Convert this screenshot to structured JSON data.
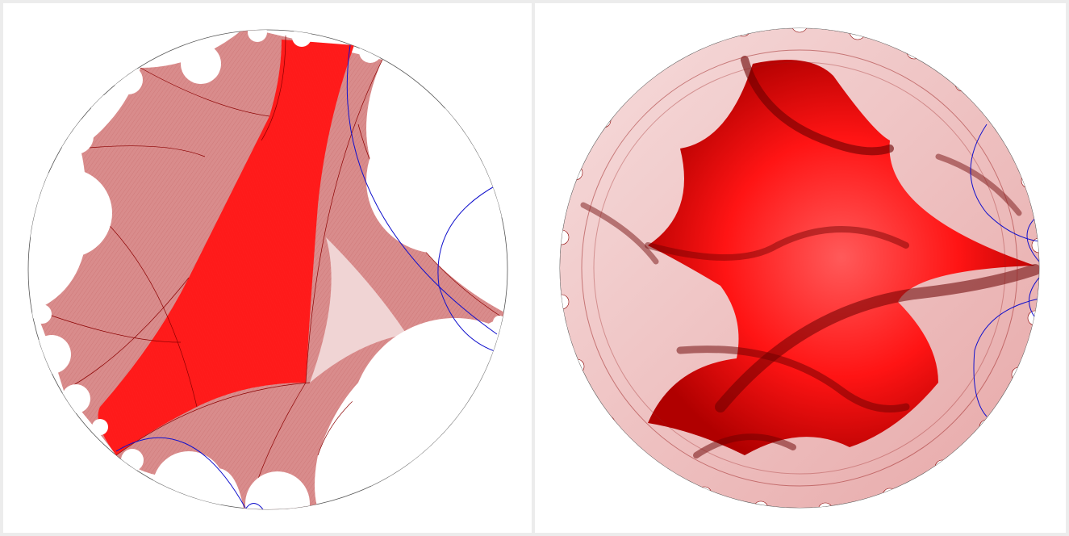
{
  "figure": {
    "panels": [
      {
        "id": "left",
        "description_name": "limit-set-strip-view"
      },
      {
        "id": "right",
        "description_name": "limit-set-fractal-view"
      }
    ]
  },
  "colors": {
    "background": "#ececec",
    "panel": "#ffffff",
    "disk_outline": "#555555",
    "fill_dark": "#ff0000",
    "fill_light": "#d98c8c",
    "fill_pale": "#f2c8c8",
    "edge": "#8b0000",
    "geodesic": "#0000cc"
  },
  "icons": {
    "left": "poincare-disk",
    "right": "poincare-disk"
  }
}
